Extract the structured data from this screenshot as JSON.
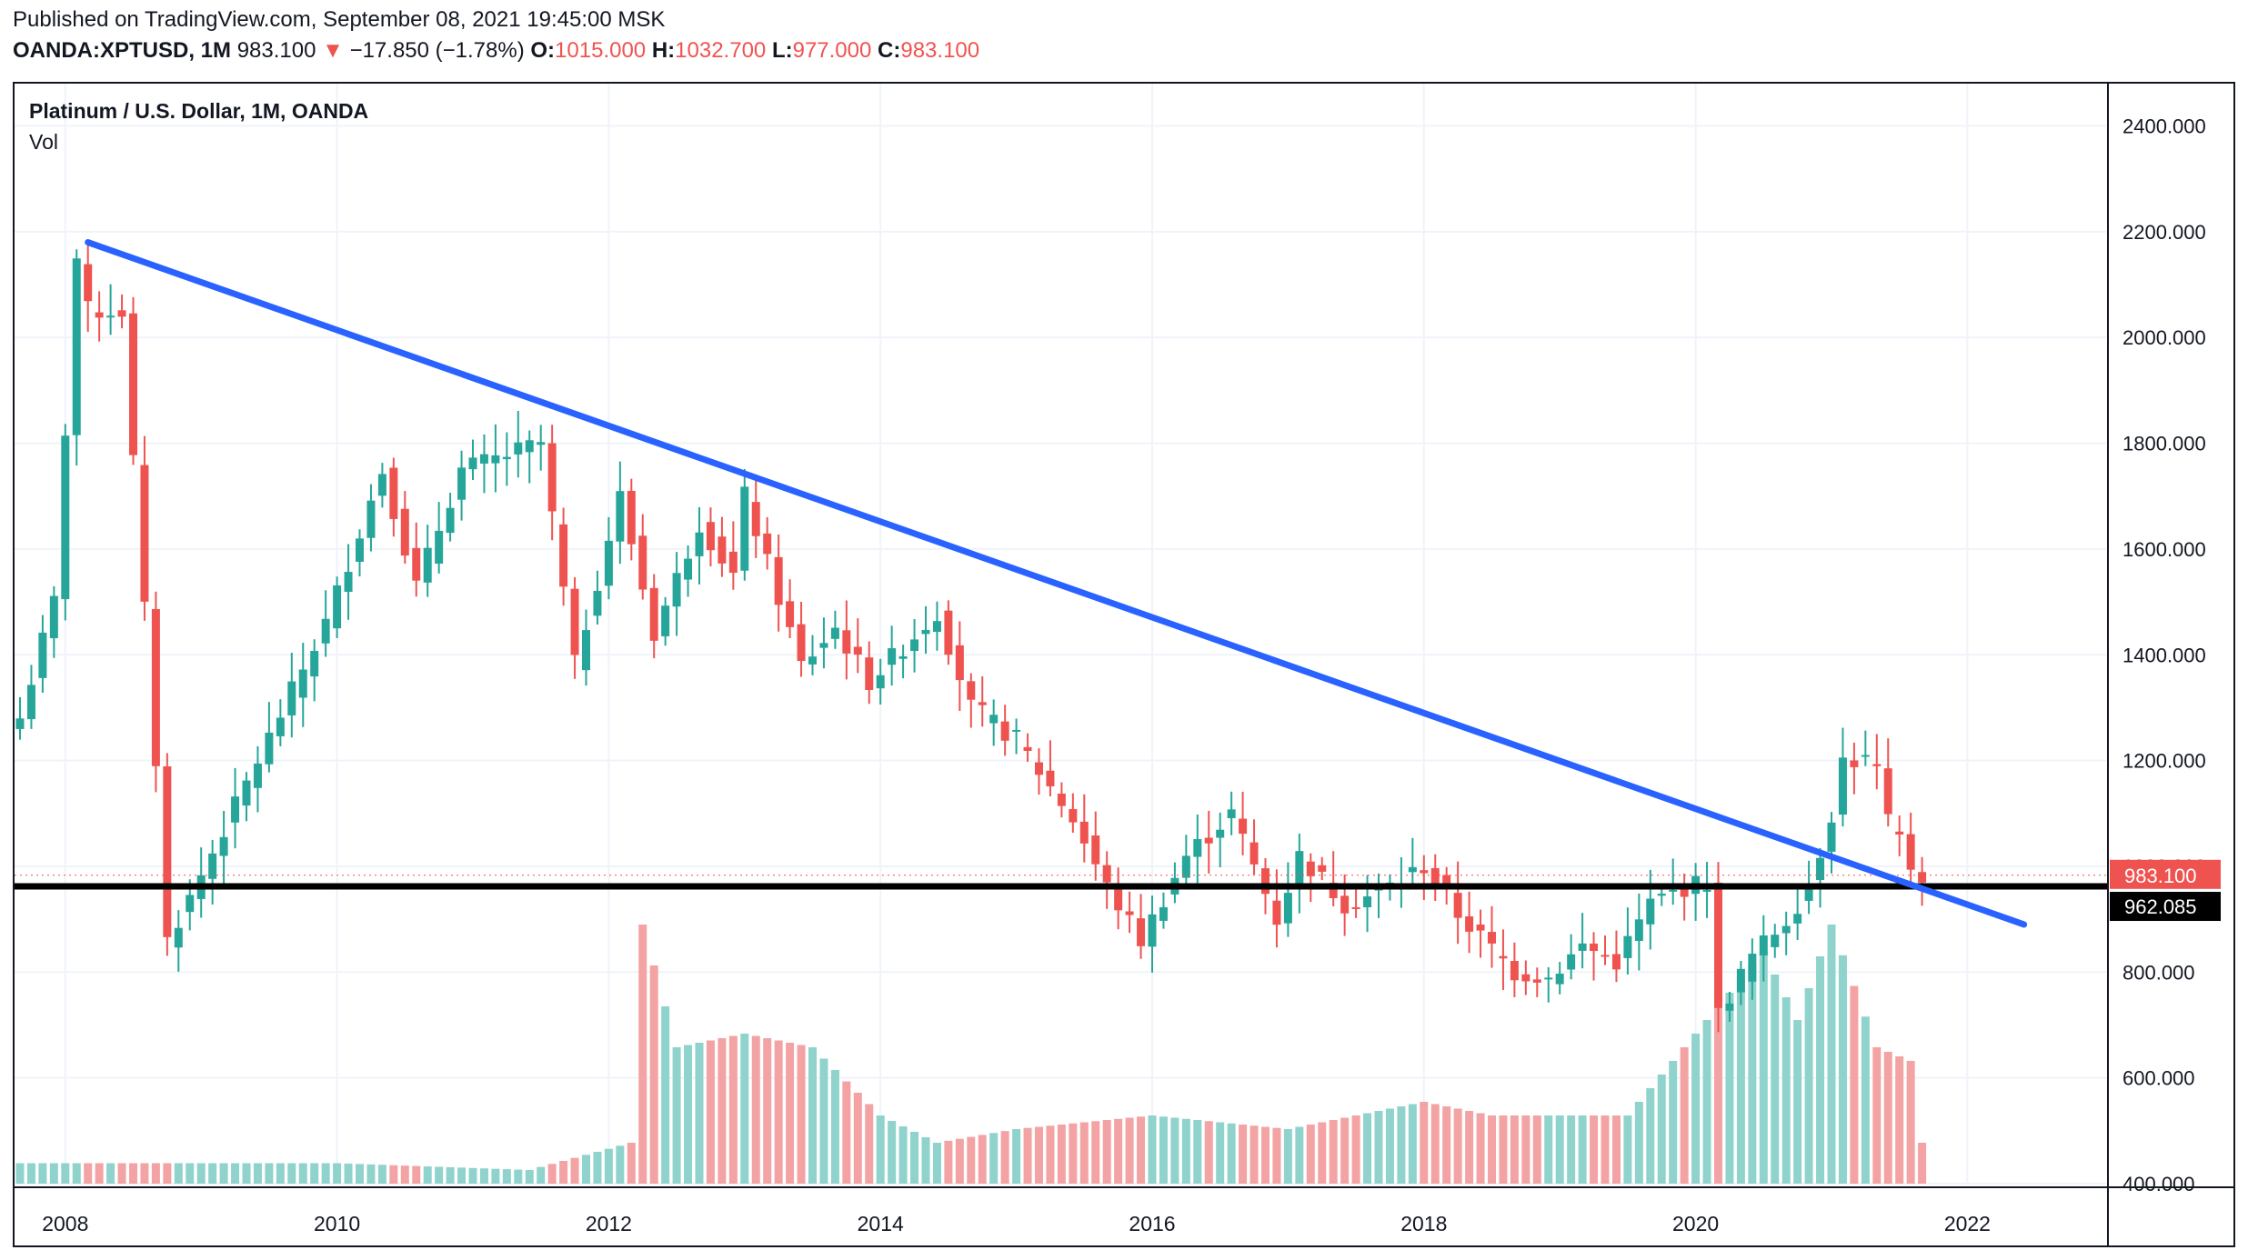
{
  "header": {
    "published": "Published on TradingView.com, September 08, 2021 19:45:00 MSK",
    "symbol": "OANDA:XPTUSD, 1M",
    "last": "983.100",
    "change": "−17.850 (−1.78%)",
    "o_label": "O:",
    "o_value": "1015.000",
    "h_label": "H:",
    "h_value": "1032.700",
    "l_label": "L:",
    "l_value": "977.000",
    "c_label": "C:",
    "c_value": "983.100"
  },
  "legend": {
    "title": "Platinum / U.S. Dollar, 1M, OANDA",
    "vol": "Vol"
  },
  "colors": {
    "up": "#26a69a",
    "down": "#ef5350",
    "vol_up": "#8fd3cc",
    "vol_down": "#f3a3a3",
    "trendline": "#2962ff",
    "support": "#000000",
    "grid": "#f0f3fa"
  },
  "price_labels": {
    "last": "983.100",
    "support": "962.085"
  },
  "chart_data": {
    "type": "candlestick",
    "title": "Platinum / U.S. Dollar, 1M, OANDA",
    "interval": "1M",
    "ylim": [
      400,
      2480
    ],
    "y_ticks": [
      400,
      600,
      800,
      1000,
      1200,
      1400,
      1600,
      1800,
      2000,
      2200,
      2400
    ],
    "y_tick_labels": [
      "400.000",
      "600.000",
      "800.000",
      "1000.000",
      "1200.000",
      "1400.000",
      "1600.000",
      "1800.000",
      "2000.000",
      "2200.000",
      "2400.000"
    ],
    "x_ticks": [
      2008,
      2010,
      2012,
      2014,
      2016,
      2018,
      2020,
      2022
    ],
    "start": "2007-09",
    "trendline": {
      "from": [
        "2008-03",
        2180
      ],
      "to": [
        "2022-06",
        890
      ]
    },
    "support_level": 962.085,
    "last_price": 983.1,
    "close_points": [
      [
        "2007-09",
        1280
      ],
      [
        "2007-12",
        1500
      ],
      [
        "2008-02",
        2150
      ],
      [
        "2008-03",
        2050
      ],
      [
        "2008-06",
        2050
      ],
      [
        "2008-09",
        1200
      ],
      [
        "2008-10",
        860
      ],
      [
        "2008-12",
        940
      ],
      [
        "2009-06",
        1200
      ],
      [
        "2009-12",
        1460
      ],
      [
        "2010-05",
        1750
      ],
      [
        "2010-08",
        1530
      ],
      [
        "2010-12",
        1750
      ],
      [
        "2011-03",
        1770
      ],
      [
        "2011-07",
        1800
      ],
      [
        "2011-09",
        1520
      ],
      [
        "2011-10",
        1380
      ],
      [
        "2012-02",
        1700
      ],
      [
        "2012-05",
        1440
      ],
      [
        "2012-09",
        1650
      ],
      [
        "2012-12",
        1550
      ],
      [
        "2013-01",
        1700
      ],
      [
        "2013-06",
        1380
      ],
      [
        "2013-09",
        1450
      ],
      [
        "2013-12",
        1350
      ],
      [
        "2014-06",
        1480
      ],
      [
        "2014-09",
        1300
      ],
      [
        "2015-01",
        1240
      ],
      [
        "2015-06",
        1090
      ],
      [
        "2015-09",
        960
      ],
      [
        "2015-12",
        860
      ],
      [
        "2016-04",
        1020
      ],
      [
        "2016-08",
        1100
      ],
      [
        "2016-12",
        900
      ],
      [
        "2017-02",
        1020
      ],
      [
        "2017-06",
        930
      ],
      [
        "2017-09",
        950
      ],
      [
        "2018-01",
        1000
      ],
      [
        "2018-04",
        910
      ],
      [
        "2018-09",
        800
      ],
      [
        "2018-12",
        790
      ],
      [
        "2019-03",
        850
      ],
      [
        "2019-06",
        820
      ],
      [
        "2019-09",
        930
      ],
      [
        "2019-12",
        960
      ],
      [
        "2020-02",
        970
      ],
      [
        "2020-03",
        720
      ],
      [
        "2020-06",
        830
      ],
      [
        "2020-09",
        900
      ],
      [
        "2020-11",
        960
      ],
      [
        "2021-01",
        1100
      ],
      [
        "2021-02",
        1200
      ],
      [
        "2021-04",
        1200
      ],
      [
        "2021-05",
        1180
      ],
      [
        "2021-06",
        1080
      ],
      [
        "2021-07",
        1050
      ],
      [
        "2021-08",
        1000
      ],
      [
        "2021-09",
        983
      ]
    ],
    "volume_points": [
      [
        "2007-09",
        15
      ],
      [
        "2010-01",
        15
      ],
      [
        "2011-06",
        10
      ],
      [
        "2012-03",
        30
      ],
      [
        "2012-04",
        190
      ],
      [
        "2012-07",
        100
      ],
      [
        "2013-01",
        110
      ],
      [
        "2013-07",
        100
      ],
      [
        "2014-01",
        50
      ],
      [
        "2014-06",
        30
      ],
      [
        "2015-01",
        40
      ],
      [
        "2016-01",
        50
      ],
      [
        "2017-01",
        40
      ],
      [
        "2017-07",
        50
      ],
      [
        "2018-01",
        60
      ],
      [
        "2018-07",
        50
      ],
      [
        "2019-01",
        50
      ],
      [
        "2019-07",
        50
      ],
      [
        "2019-12",
        100
      ],
      [
        "2020-04",
        140
      ],
      [
        "2020-07",
        170
      ],
      [
        "2020-10",
        120
      ],
      [
        "2021-01",
        190
      ],
      [
        "2021-05",
        100
      ],
      [
        "2021-08",
        90
      ],
      [
        "2021-09",
        30
      ]
    ],
    "volume_max": 200
  }
}
